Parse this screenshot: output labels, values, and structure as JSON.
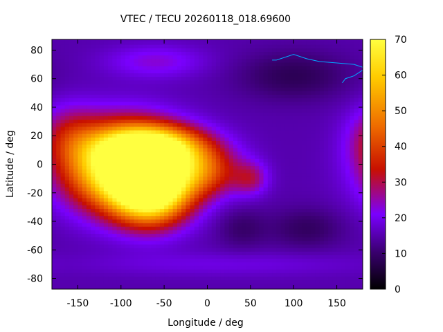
{
  "chart_data": {
    "type": "heatmap",
    "title": "VTEC / TECU 20260118_018.69600",
    "xlabel": "Longitude / deg",
    "ylabel": "Latitude / deg",
    "xlim": [
      -180,
      180
    ],
    "ylim": [
      -87.5,
      87.5
    ],
    "x_ticks": [
      -150,
      -100,
      -50,
      0,
      50,
      100,
      150
    ],
    "x_tick_labels": [
      "-150",
      "-100",
      "-50",
      "0",
      "50",
      "100",
      "150"
    ],
    "y_ticks": [
      80,
      60,
      40,
      20,
      0,
      -20,
      -40,
      -60,
      -80
    ],
    "y_tick_labels": [
      "80",
      "60",
      "40",
      "20",
      "0",
      "-20",
      "-40",
      "-60",
      "-80"
    ],
    "colorbar": {
      "range": [
        0,
        70
      ],
      "ticks": [
        0,
        10,
        20,
        30,
        40,
        50,
        60,
        70
      ],
      "tick_labels": [
        "0",
        "10",
        "20",
        "30",
        "40",
        "50",
        "60",
        "70"
      ],
      "palette": "black-purple-red-orange-yellow"
    },
    "background_value": 15,
    "features": [
      {
        "name": "equatorial-anomaly-peak",
        "lon": -95,
        "lat": -2,
        "value": 66,
        "sx": 45,
        "sy": 20
      },
      {
        "name": "anomaly-south-peak",
        "lon": -65,
        "lat": -18,
        "value": 55,
        "sx": 30,
        "sy": 16
      },
      {
        "name": "anomaly-north-crest",
        "lon": -60,
        "lat": 12,
        "value": 40,
        "sx": 40,
        "sy": 10
      },
      {
        "name": "atlantic-extension",
        "lon": -5,
        "lat": -5,
        "value": 22,
        "sx": 30,
        "sy": 12
      },
      {
        "name": "east-atlantic-spot",
        "lon": 50,
        "lat": -10,
        "value": 12,
        "sx": 14,
        "sy": 8
      },
      {
        "name": "north-pacific-enhancement",
        "lon": -160,
        "lat": 20,
        "value": 12,
        "sx": 25,
        "sy": 15
      },
      {
        "name": "polar-cap-north",
        "lon": -60,
        "lat": 72,
        "value": 8,
        "sx": 40,
        "sy": 8
      },
      {
        "name": "asia-depletion",
        "lon": 100,
        "lat": 62,
        "value": -7,
        "sx": 45,
        "sy": 12
      },
      {
        "name": "australia-depletion",
        "lon": 115,
        "lat": -45,
        "value": -6,
        "sx": 30,
        "sy": 10
      },
      {
        "name": "south-atlantic-depletion",
        "lon": 40,
        "lat": -45,
        "value": -5,
        "sx": 20,
        "sy": 10
      },
      {
        "name": "south-polar-ring",
        "lon": 20,
        "lat": -70,
        "value": 4,
        "sx": 120,
        "sy": 6
      }
    ]
  }
}
